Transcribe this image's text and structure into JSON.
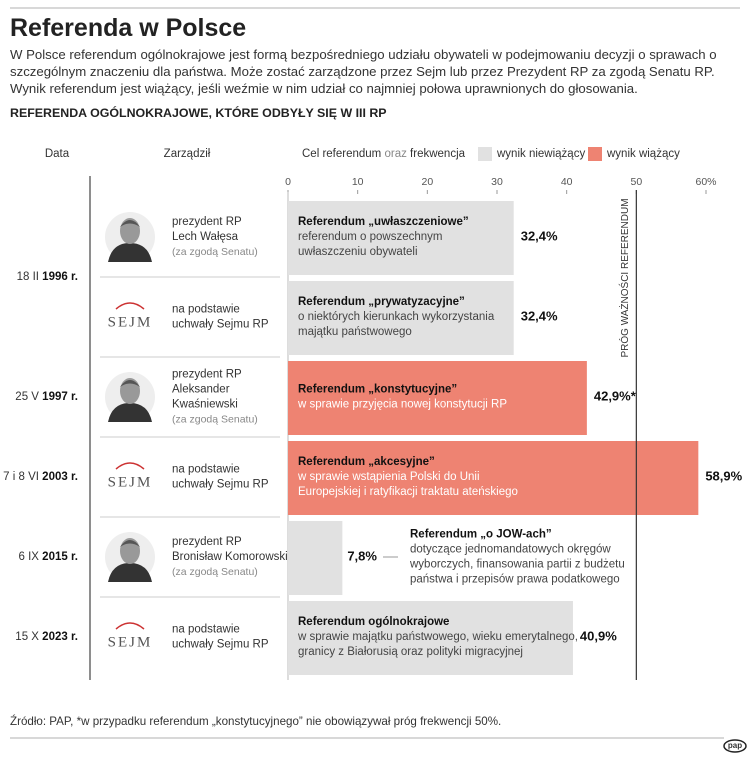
{
  "chart_data": {
    "type": "bar",
    "title": "Referenda w Polsce",
    "intro": "W Polsce referendum ogólnokrajowe jest formą bezpośredniego udziału obywateli w podejmowaniu decyzji o sprawach o szczególnym znaczeniu dla państwa. Może zostać zarządzone przez Sejm lub przez Prezydent RP za zgodą Senatu RP. Wynik referendum jest wiążący, jeśli weźmie w nim udział co najmniej połowa uprawnionych do głosowania.",
    "subtitle": "REFERENDA OGÓLNOKRAJOWE, KTÓRE ODBYŁY SIĘ W III RP",
    "column_headers": {
      "date": "Data",
      "authority": "Zarządził",
      "goal": [
        "Cel referendum",
        "oraz",
        "frekwencja"
      ]
    },
    "legend": [
      {
        "name": "wynik niewiążący",
        "color": "#e1e1e1"
      },
      {
        "name": "wynik wiążący",
        "color": "#ee8372"
      }
    ],
    "xlim": [
      0,
      60
    ],
    "xticks": [
      0,
      10,
      20,
      30,
      40,
      50,
      {
        "value": 60,
        "label": "60%"
      }
    ],
    "threshold": {
      "value": 50,
      "label": "PRÓG WAŻNOŚCI REFERENDUM"
    },
    "rows": [
      {
        "day": "18 II",
        "year": "1996 r.",
        "authority": [
          "prezydent RP",
          "Lech Wałęsa"
        ],
        "note": "(za zgodą Senatu)",
        "name": "Referendum „uwłaszczeniowe”",
        "description": [
          "referendum o powszechnym",
          "uwłaszczeniu obywateli"
        ],
        "value": 32.4,
        "value_label": "32,4%",
        "result": 0
      },
      {
        "logo": "SEJM",
        "authority": [
          "na podstawie",
          "uchwały Sejmu RP"
        ],
        "name": "Referendum „prywatyzacyjne”",
        "description": [
          "o niektórych kierunkach wykorzystania",
          "majątku państwowego"
        ],
        "value": 32.4,
        "value_label": "32,4%",
        "result": 0
      },
      {
        "day": "25 V",
        "year": "1997 r.",
        "authority": [
          "prezydent RP",
          "Aleksander",
          "Kwaśniewski"
        ],
        "note": "(za zgodą Senatu)",
        "name": "Referendum „konstytucyjne”",
        "description": [
          "w sprawie przyjęcia nowej konstytucji RP"
        ],
        "value": 42.9,
        "value_label": "42,9%*",
        "result": 1
      },
      {
        "day": "7 i 8 VI",
        "year": "2003 r.",
        "logo": "SEJM",
        "authority": [
          "na podstawie",
          "uchwały Sejmu RP"
        ],
        "name": "Referendum „akcesyjne”",
        "description": [
          "w sprawie wstąpienia Polski do Unii",
          "Europejskiej i ratyfikacji traktatu ateńskiego"
        ],
        "value": 58.9,
        "value_label": "58,9%",
        "result": 1
      },
      {
        "day": "6 IX",
        "year": "2015 r.",
        "authority": [
          "prezydent RP",
          "Bronisław Komorowski"
        ],
        "note": "(za zgodą Senatu)",
        "name": "Referendum „o JOW-ach”",
        "description": [
          "dotyczące jednomandatowych okręgów",
          "wyborczych, finansowania partii z budżetu",
          "państwa i przepisów prawa  podatkowego"
        ],
        "value": 7.8,
        "value_label": "7,8%",
        "result": 0
      },
      {
        "day": "15 X",
        "year": "2023 r.",
        "logo": "SEJM",
        "authority": [
          "na podstawie",
          "uchwały Sejmu RP"
        ],
        "name": "Referendum ogólnokrajowe",
        "description": [
          "w sprawie majątku państwowego, wieku emerytalnego,",
          "granicy z Białorusią oraz polityki migracyjnej"
        ],
        "value": 40.9,
        "value_label": "40,9%",
        "result": 0
      }
    ],
    "footer": "Źródło: PAP, *w przypadku referendum „konstytucyjnego” nie obowiązywał próg frekwencji 50%.",
    "brand": "pap"
  }
}
